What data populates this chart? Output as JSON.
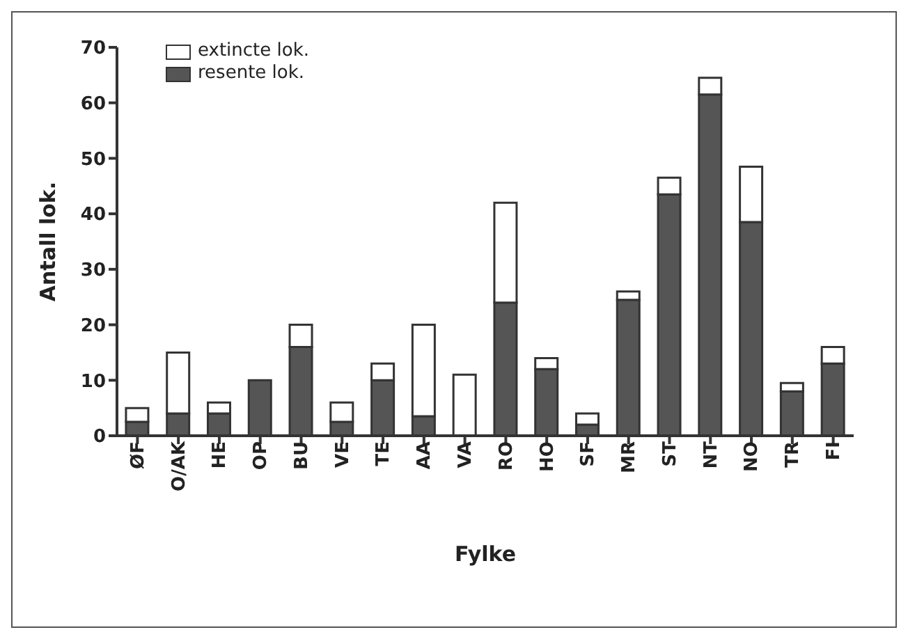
{
  "chart_data": {
    "type": "bar",
    "stacked": true,
    "xlabel": "Fylke",
    "ylabel": "Antall lok.",
    "categories": [
      "ØF",
      "O/AK",
      "HE",
      "OP",
      "BU",
      "VE",
      "TE",
      "AA",
      "VA",
      "RO",
      "HO",
      "SF",
      "MR",
      "ST",
      "NT",
      "NO",
      "TR",
      "FI"
    ],
    "series": [
      {
        "name": "resente lok.",
        "color": "#555555",
        "values": [
          2.5,
          4,
          4,
          10,
          16,
          2.5,
          10,
          3.5,
          0,
          24,
          12,
          2,
          24.5,
          43.5,
          61.5,
          38.5,
          8,
          13
        ]
      },
      {
        "name": "extincte lok.",
        "color": "#ffffff",
        "values": [
          2.5,
          11,
          2,
          0,
          4,
          3.5,
          3,
          16.5,
          11,
          18,
          2,
          2,
          1.5,
          3,
          3,
          10,
          1.5,
          3
        ]
      }
    ],
    "ylim": [
      0,
      70
    ],
    "yticks": [
      0,
      10,
      20,
      30,
      40,
      50,
      60,
      70
    ],
    "grid": false,
    "legend": "top left"
  }
}
